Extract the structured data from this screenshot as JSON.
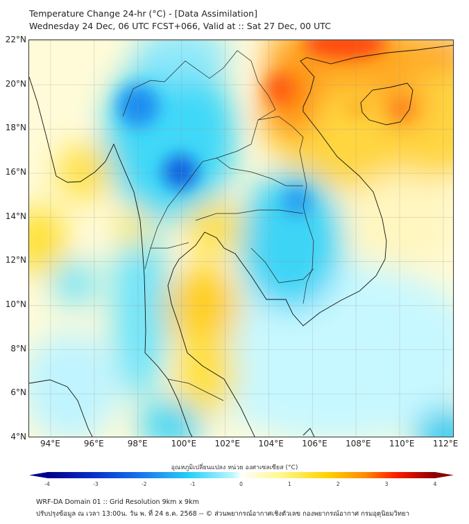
{
  "header": {
    "title": "Temperature Change 24-hr (°C) - [Data Assimilation]",
    "subtitle": "Wednesday 24 Dec, 06 UTC FCST+066, Valid at :: Sat 27 Dec, 00 UTC"
  },
  "map": {
    "lon_labels": [
      "94°E",
      "96°E",
      "98°E",
      "100°E",
      "102°E",
      "104°E",
      "106°E",
      "108°E",
      "110°E",
      "112°E"
    ],
    "lat_labels": [
      "22°N",
      "20°N",
      "18°N",
      "16°N",
      "14°N",
      "12°N",
      "10°N",
      "8°N",
      "6°N",
      "4°N"
    ]
  },
  "colorbar": {
    "label": "อุณหภูมิเปลี่ยนแปลง หน่วย องศาเซลเซียส (°C)",
    "ticks": [
      "-4",
      "-3",
      "-2",
      "-1",
      "0",
      "1",
      "2",
      "3",
      "4"
    ],
    "colors": {
      "min": "#00008c",
      "neg": "#2ad2f8",
      "zero": "#ffffff",
      "pos": "#ffd400",
      "max": "#8b0000"
    }
  },
  "footer": {
    "line1": "WRF-DA Domain 01 :: Grid Resolution 9km x 9km",
    "line2": "ปรับปรุงข้อมูล ณ เวลา 13:00น. วัน พ. ที่ 24 ธ.ค. 2568 -- © ส่วนพยากรณ์อากาศเชิงตัวเลข กองพยากรณ์อากาศ กรมอุตุนิยมวิทยา"
  }
}
